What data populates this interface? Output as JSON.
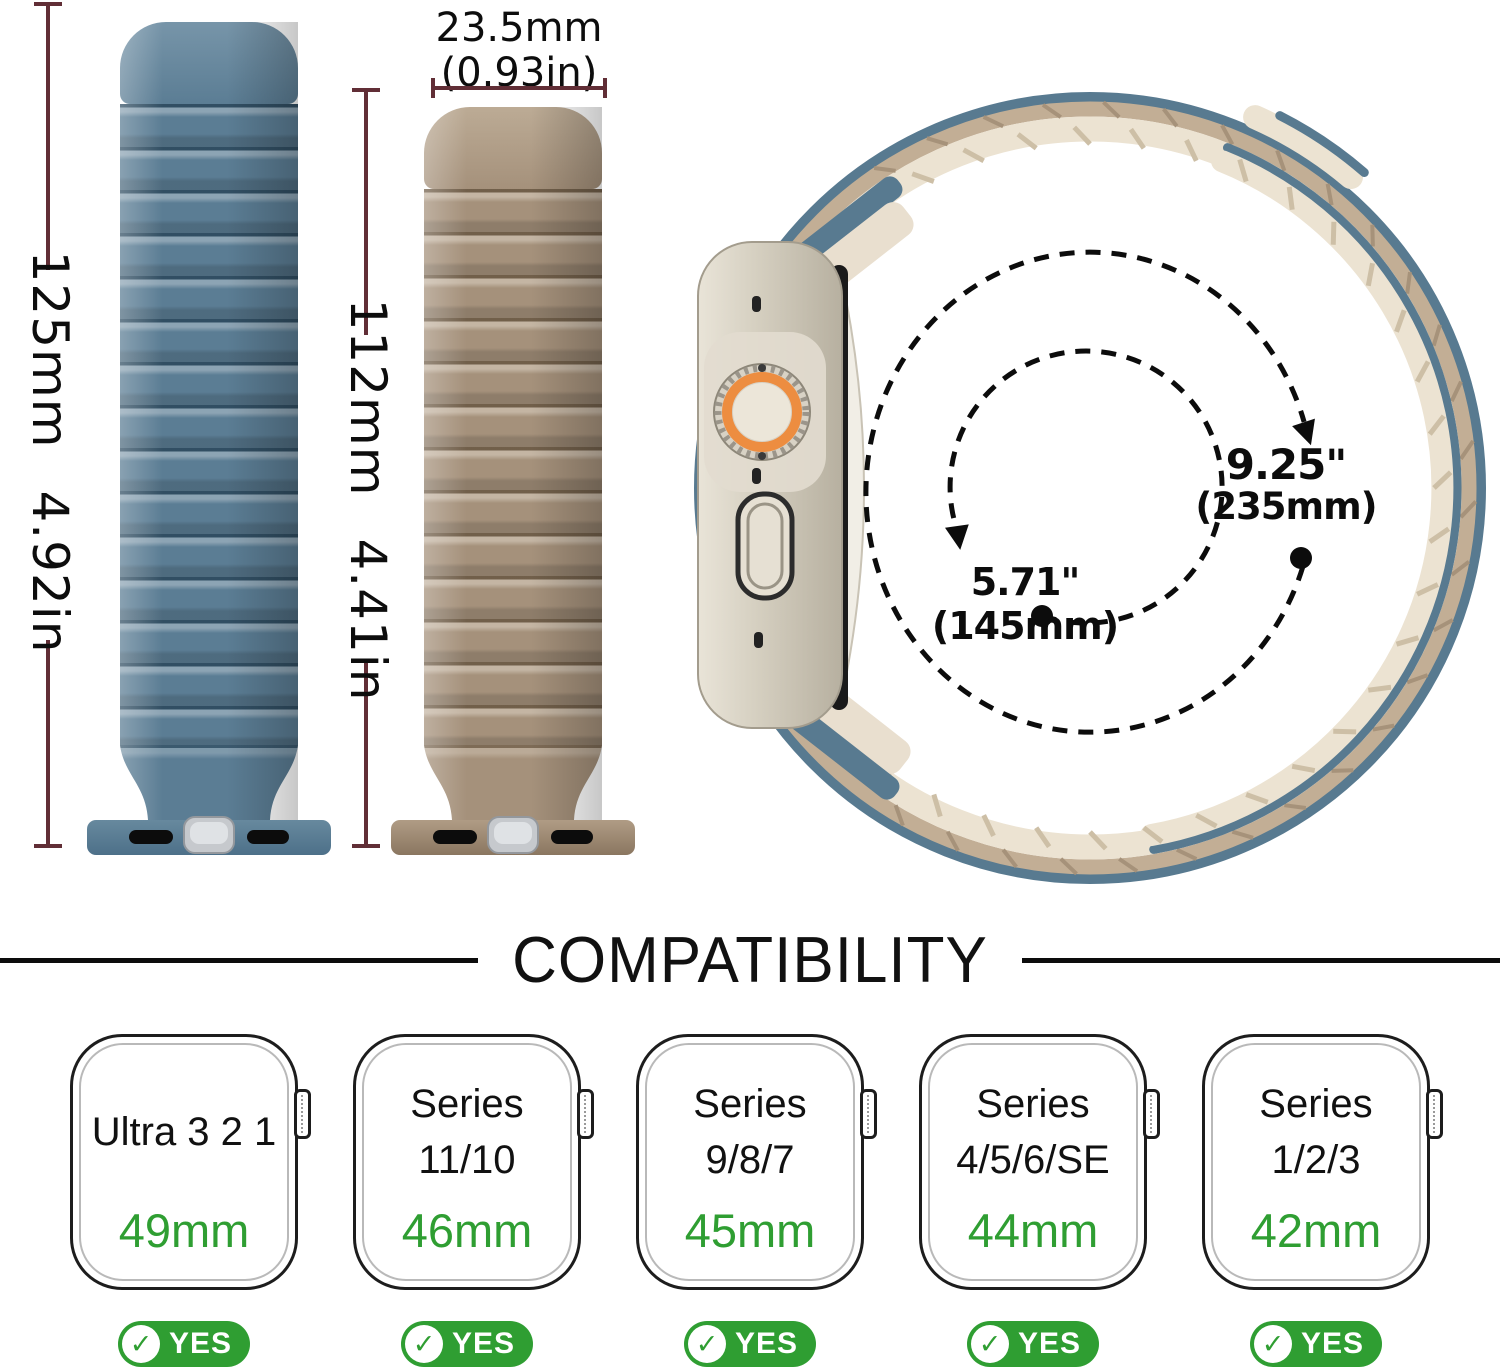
{
  "colors": {
    "measure": "#612e36",
    "strap_blue": "#5b7d94",
    "strap_khaki": "#a5917b",
    "band_cream": "#ece3d2",
    "band_tan": "#c2ae95",
    "band_blue": "#587a90",
    "green": "#2f9e32",
    "titanium_light": "#e7e1d4",
    "titanium_dark": "#b7b0a0",
    "orange": "#ed8d40"
  },
  "measurements": {
    "strap_long_mm": "125mm",
    "strap_long_in": "4.92in",
    "strap_short_mm": "112mm",
    "strap_short_in": "4.41in",
    "band_width_mm": "23.5mm",
    "band_width_in": "(0.93in)",
    "wrist_min": "5.71\" (145mm)",
    "wrist_max": "9.25\"",
    "wrist_max_mm": "(235mm)"
  },
  "compatibility": {
    "heading": "COMPATIBILITY",
    "check_glyph": "✓",
    "models": [
      {
        "title_lines": [
          "Ultra 3 2 1"
        ],
        "size": "49mm",
        "badge": "YES"
      },
      {
        "title_lines": [
          "Series",
          "11/10"
        ],
        "size": "46mm",
        "badge": "YES"
      },
      {
        "title_lines": [
          "Series",
          "9/8/7"
        ],
        "size": "45mm",
        "badge": "YES"
      },
      {
        "title_lines": [
          "Series",
          "4/5/6/SE"
        ],
        "size": "44mm",
        "badge": "YES"
      },
      {
        "title_lines": [
          "Series",
          "1/2/3"
        ],
        "size": "42mm",
        "badge": "YES"
      }
    ]
  }
}
